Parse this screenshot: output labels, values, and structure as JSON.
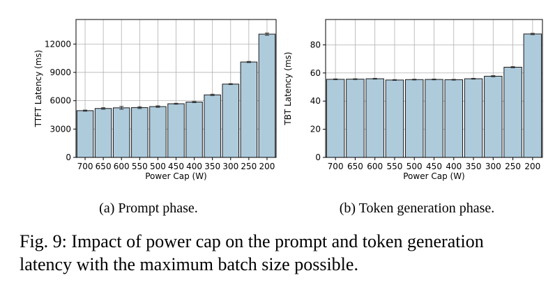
{
  "chart_data": [
    {
      "type": "bar",
      "xlabel": "Power Cap (W)",
      "ylabel": "TTFT Latency (ms)",
      "categories": [
        "700",
        "650",
        "600",
        "550",
        "500",
        "450",
        "400",
        "350",
        "300",
        "250",
        "200"
      ],
      "values": [
        4950,
        5180,
        5250,
        5270,
        5380,
        5680,
        5860,
        6620,
        7760,
        10100,
        13050
      ],
      "error": [
        60,
        80,
        150,
        100,
        80,
        50,
        60,
        70,
        50,
        60,
        120
      ],
      "ylim": [
        0,
        14600
      ],
      "yticks": [
        0,
        3000,
        6000,
        9000,
        12000
      ],
      "grid": true,
      "bar_color": "#aecbdc",
      "caption": "(a) Prompt phase."
    },
    {
      "type": "bar",
      "xlabel": "Power Cap (W)",
      "ylabel": "TBT Latency (ms)",
      "categories": [
        "700",
        "650",
        "600",
        "550",
        "500",
        "450",
        "400",
        "350",
        "300",
        "250",
        "200"
      ],
      "values": [
        55.5,
        55.6,
        55.9,
        55.0,
        55.3,
        55.4,
        55.2,
        55.9,
        57.7,
        64.1,
        87.7
      ],
      "error": [
        0.3,
        0.3,
        0.3,
        0.3,
        0.3,
        0.3,
        0.3,
        0.3,
        0.4,
        0.4,
        0.5
      ],
      "ylim": [
        0,
        98
      ],
      "yticks": [
        0,
        20,
        40,
        60,
        80
      ],
      "grid": true,
      "bar_color": "#aecbdc",
      "caption": "(b) Token generation phase."
    }
  ],
  "figure_caption": {
    "line1": "Fig. 9: Impact of power cap on the prompt and token generation",
    "line2": "latency with the maximum batch size possible."
  }
}
